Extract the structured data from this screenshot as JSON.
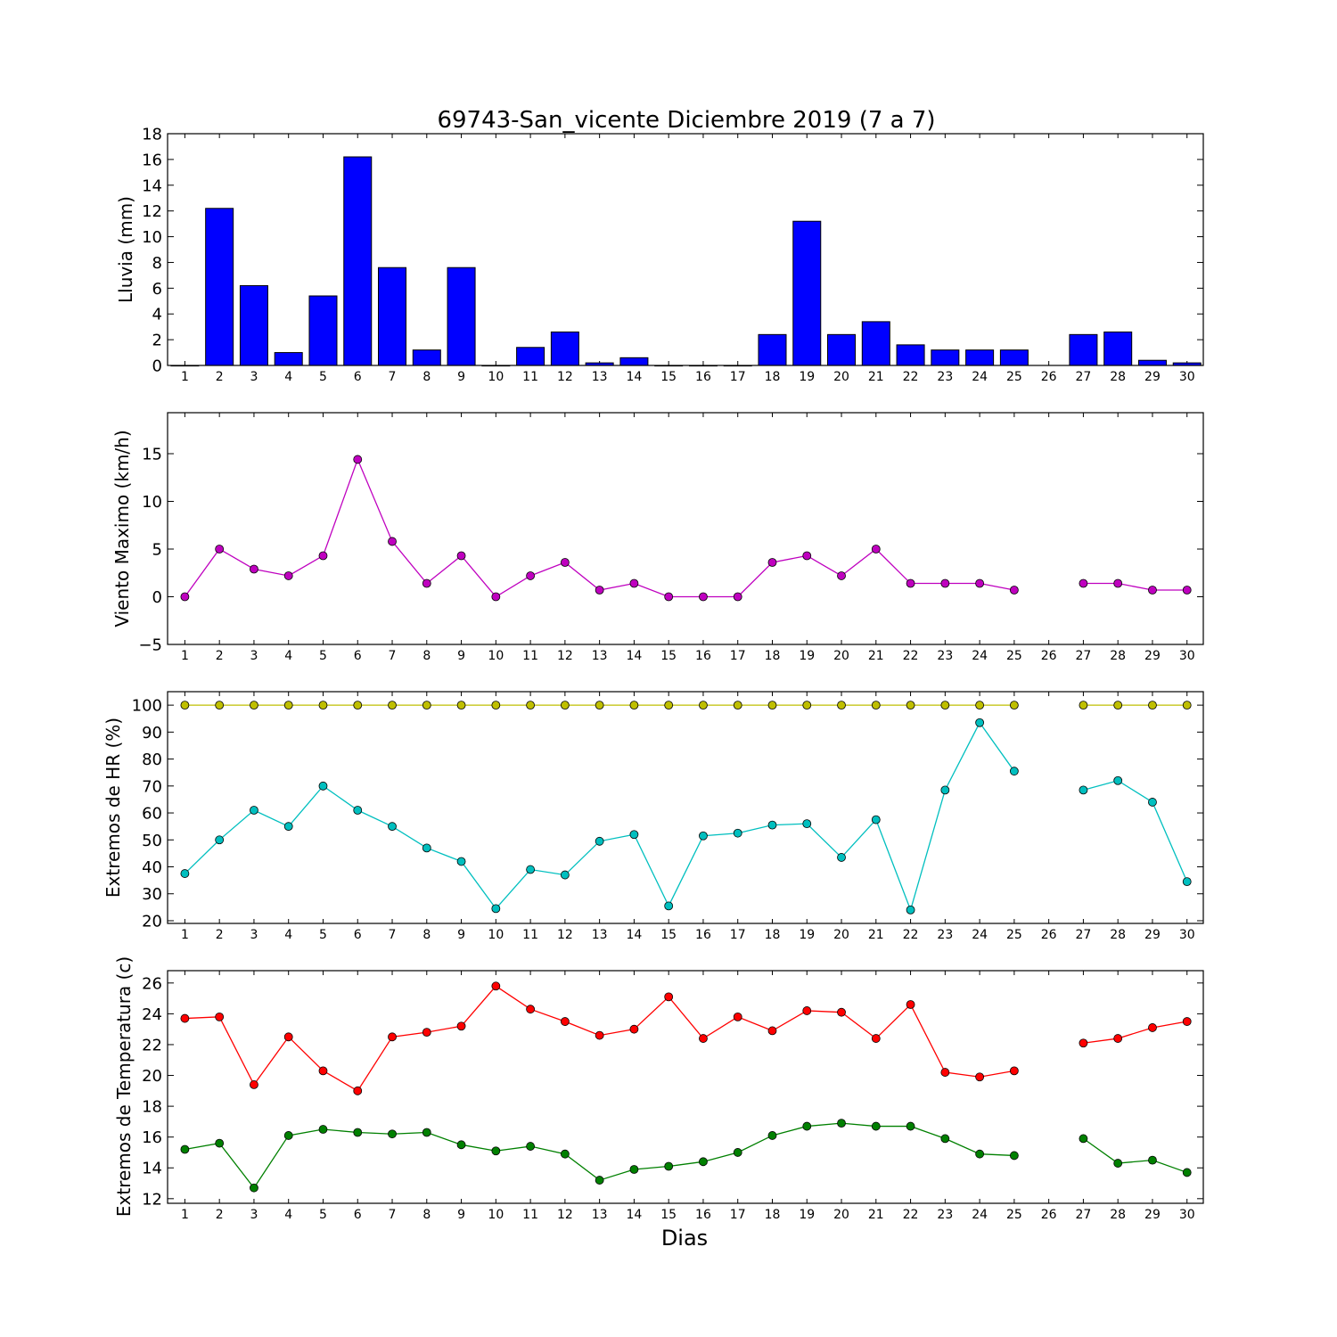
{
  "chart_data": [
    {
      "type": "bar",
      "title": "69743-San_vicente Diciembre 2019  (7 a 7)",
      "ylabel": "Lluvia (mm)",
      "xlabel": "",
      "categories": [
        1,
        2,
        3,
        4,
        5,
        6,
        7,
        8,
        9,
        10,
        11,
        12,
        13,
        14,
        15,
        16,
        17,
        18,
        19,
        20,
        21,
        22,
        23,
        24,
        25,
        26,
        27,
        28,
        29,
        30
      ],
      "values": [
        0,
        12.2,
        6.2,
        1.0,
        5.4,
        16.2,
        7.6,
        1.2,
        7.6,
        0,
        1.4,
        2.6,
        0.2,
        0.6,
        0,
        0,
        0,
        2.4,
        11.2,
        2.4,
        3.4,
        1.6,
        1.2,
        1.2,
        1.2,
        null,
        2.4,
        2.6,
        0.4,
        0.2
      ],
      "ylim": [
        0,
        18
      ],
      "yticks": [
        0,
        2,
        4,
        6,
        8,
        10,
        12,
        14,
        16,
        18
      ],
      "color": "#0000ff"
    },
    {
      "type": "line",
      "title": "",
      "ylabel": "Viento Maximo (km/h)",
      "xlabel": "",
      "x": [
        1,
        2,
        3,
        4,
        5,
        6,
        7,
        8,
        9,
        10,
        11,
        12,
        13,
        14,
        15,
        16,
        17,
        18,
        19,
        20,
        21,
        22,
        23,
        24,
        25,
        26,
        27,
        28,
        29,
        30
      ],
      "series": [
        {
          "values": [
            0,
            5.0,
            2.9,
            2.2,
            4.3,
            14.4,
            5.8,
            1.4,
            4.3,
            0,
            2.2,
            3.6,
            0.7,
            1.4,
            0,
            0,
            0,
            3.6,
            4.3,
            2.2,
            5.0,
            1.4,
            1.4,
            1.4,
            0.7,
            null,
            1.4,
            1.4,
            0.7,
            0.7
          ],
          "color": "#bf00bf"
        }
      ],
      "ylim": [
        -5,
        19.3
      ],
      "yticks": [
        -5,
        0,
        5,
        10,
        15
      ]
    },
    {
      "type": "line",
      "title": "",
      "ylabel": "Extremos de HR (%)",
      "xlabel": "",
      "x": [
        1,
        2,
        3,
        4,
        5,
        6,
        7,
        8,
        9,
        10,
        11,
        12,
        13,
        14,
        15,
        16,
        17,
        18,
        19,
        20,
        21,
        22,
        23,
        24,
        25,
        26,
        27,
        28,
        29,
        30
      ],
      "series": [
        {
          "values": [
            100,
            100,
            100,
            100,
            100,
            100,
            100,
            100,
            100,
            100,
            100,
            100,
            100,
            100,
            100,
            100,
            100,
            100,
            100,
            100,
            100,
            100,
            100,
            100,
            100,
            null,
            100,
            100,
            100,
            100
          ],
          "color": "#bfbf00"
        },
        {
          "values": [
            37.5,
            50,
            61,
            55,
            70,
            61,
            55,
            47,
            42,
            24.5,
            39,
            37,
            49.5,
            52,
            25.5,
            51.5,
            52.5,
            55.5,
            56,
            43.5,
            57.5,
            24,
            68.5,
            93.5,
            75.5,
            null,
            68.5,
            72,
            64,
            34.5
          ],
          "color": "#00bfbf"
        }
      ],
      "ylim": [
        19,
        105
      ],
      "yticks": [
        20,
        30,
        40,
        50,
        60,
        70,
        80,
        90,
        100
      ]
    },
    {
      "type": "line",
      "title": "",
      "ylabel": "Extremos de Temperatura (c)",
      "xlabel": "Dias",
      "x": [
        1,
        2,
        3,
        4,
        5,
        6,
        7,
        8,
        9,
        10,
        11,
        12,
        13,
        14,
        15,
        16,
        17,
        18,
        19,
        20,
        21,
        22,
        23,
        24,
        25,
        26,
        27,
        28,
        29,
        30
      ],
      "series": [
        {
          "values": [
            23.7,
            23.8,
            19.4,
            22.5,
            20.3,
            19.0,
            22.5,
            22.8,
            23.2,
            25.8,
            24.3,
            23.5,
            22.6,
            23.0,
            25.1,
            22.4,
            23.8,
            22.9,
            24.2,
            24.1,
            22.4,
            24.6,
            20.2,
            19.9,
            20.3,
            null,
            22.1,
            22.4,
            23.1,
            23.5
          ],
          "color": "#ff0000"
        },
        {
          "values": [
            15.2,
            15.6,
            12.7,
            16.1,
            16.5,
            16.3,
            16.2,
            16.3,
            15.5,
            15.1,
            15.4,
            14.9,
            13.2,
            13.9,
            14.1,
            14.4,
            15.0,
            16.1,
            16.7,
            16.9,
            16.7,
            16.7,
            15.9,
            14.9,
            14.8,
            null,
            15.9,
            14.3,
            14.5,
            13.7
          ],
          "color": "#008000"
        }
      ],
      "ylim": [
        11.7,
        26.8
      ],
      "yticks": [
        12,
        14,
        16,
        18,
        20,
        22,
        24,
        26
      ]
    }
  ]
}
